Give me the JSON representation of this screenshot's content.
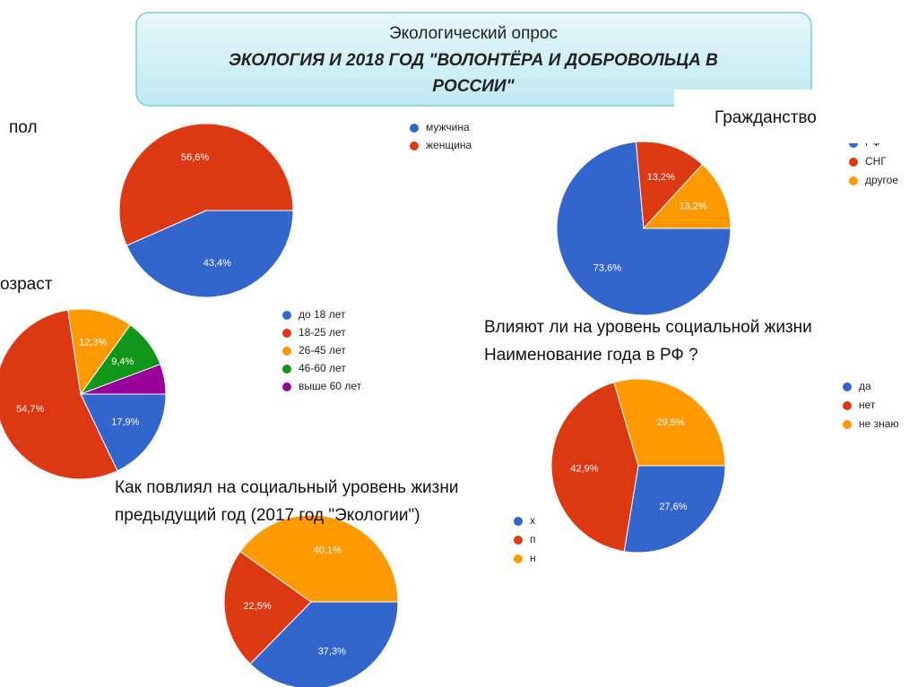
{
  "header": {
    "title": [
      "Экологический опрос",
      "ЭКОЛОГИЯ И 2018 ГОД \"ВОЛОНТЁРА И ДОБРОВОЛЬЦА В",
      "РОССИИ\""
    ]
  },
  "chart_data": [
    {
      "type": "pie",
      "title": [
        "пол"
      ],
      "categories": [
        "мужчина",
        "женщина"
      ],
      "values": [
        43.4,
        56.6
      ],
      "value_labels": [
        "43,4%",
        "56,6%"
      ],
      "colors": [
        "#3366cc",
        "#dc3912"
      ]
    },
    {
      "type": "pie",
      "title": [
        "Гражданство"
      ],
      "categories": [
        "РФ",
        "СНГ",
        "другое"
      ],
      "values": [
        73.6,
        13.2,
        13.2
      ],
      "value_labels": [
        "73,6%",
        "13,2%",
        "13,2%"
      ],
      "colors": [
        "#3366cc",
        "#dc3912",
        "#ff9900"
      ]
    },
    {
      "type": "pie",
      "title": [
        "озраст"
      ],
      "categories": [
        "до 18 лет",
        "18-25 лет",
        "26-45 лет",
        "46-60 лет",
        "выше 60 лет"
      ],
      "values": [
        17.9,
        54.7,
        12.3,
        9.4,
        5.7
      ],
      "value_labels": [
        "17,9%",
        "54,7%",
        "12,3%",
        "9,4%",
        null
      ],
      "colors": [
        "#3366cc",
        "#dc3912",
        "#ff9900",
        "#109618",
        "#990099"
      ]
    },
    {
      "type": "pie",
      "title": [
        "Влияют ли на уровень социальной жизни",
        "Наименование года в РФ ?"
      ],
      "categories": [
        "да",
        "нет",
        "не знаю"
      ],
      "values": [
        27.6,
        42.9,
        29.5
      ],
      "value_labels": [
        "27,6%",
        "42,9%",
        "29,5%"
      ],
      "colors": [
        "#3366cc",
        "#dc3912",
        "#ff9900"
      ]
    },
    {
      "type": "pie",
      "title": [
        "Как повлиял на социальный уровень жизни",
        "предыдущий год (2017 год \"Экологии\")"
      ],
      "categories": [
        "х",
        "п",
        "н"
      ],
      "values": [
        37.3,
        22.5,
        40.1
      ],
      "value_labels": [
        "37,3%",
        "22,5%",
        "40,1%"
      ],
      "colors": [
        "#3366cc",
        "#dc3912",
        "#ff9900"
      ]
    }
  ]
}
